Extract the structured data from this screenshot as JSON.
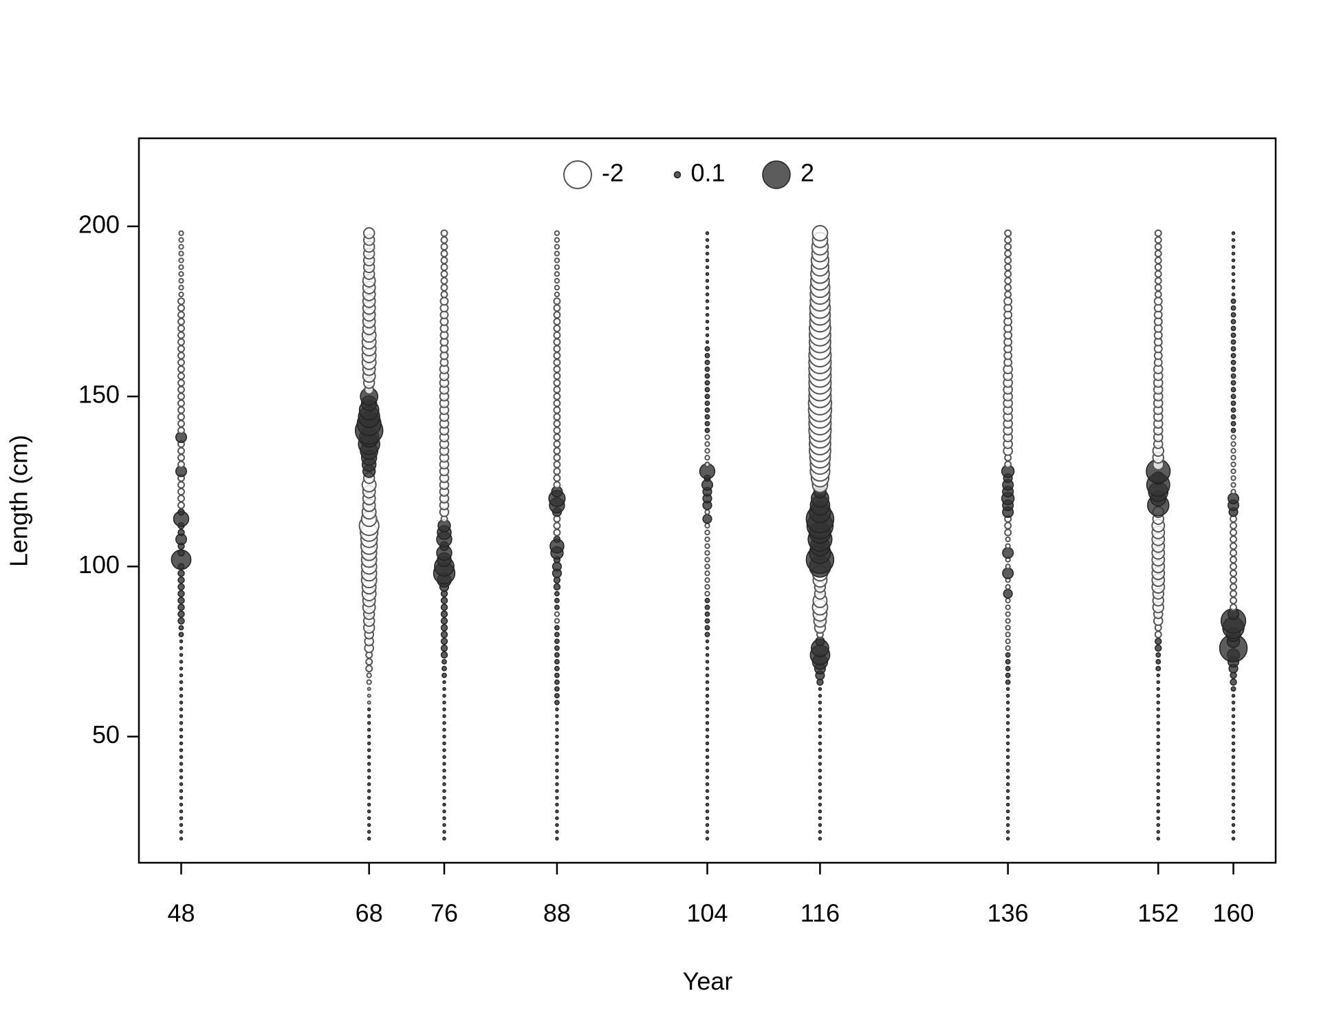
{
  "chart_data": {
    "type": "bubble",
    "xlabel": "Year",
    "ylabel": "Length (cm)",
    "positive_color": "#333333",
    "negative_color": "#ffffff",
    "xlim": [
      43.5,
      164.5
    ],
    "ylim": [
      12.9,
      225.9
    ],
    "xticks": [
      48,
      68,
      76,
      88,
      104,
      116,
      136,
      152,
      160
    ],
    "yticks": [
      50,
      100,
      150,
      200
    ],
    "legend": {
      "values": [
        -2,
        0.1,
        2
      ]
    },
    "lengths": [
      20,
      22,
      24,
      26,
      28,
      30,
      32,
      34,
      36,
      38,
      40,
      42,
      44,
      46,
      48,
      50,
      52,
      54,
      56,
      58,
      60,
      62,
      64,
      66,
      68,
      70,
      72,
      74,
      76,
      78,
      80,
      82,
      84,
      86,
      88,
      90,
      92,
      94,
      96,
      98,
      100,
      102,
      104,
      106,
      108,
      110,
      112,
      114,
      116,
      118,
      120,
      122,
      124,
      126,
      128,
      130,
      132,
      134,
      136,
      138,
      140,
      142,
      144,
      146,
      148,
      150,
      152,
      154,
      156,
      158,
      160,
      162,
      164,
      166,
      168,
      170,
      172,
      174,
      176,
      178,
      180,
      182,
      184,
      186,
      188,
      190,
      192,
      194,
      196,
      198
    ],
    "columns": [
      {
        "x": 48,
        "residuals": [
          0.02,
          0.02,
          0.02,
          0.02,
          0.02,
          0.02,
          0.02,
          0.02,
          0.02,
          0.02,
          0.02,
          0.02,
          0.02,
          0.02,
          0.02,
          0.02,
          0.02,
          0.02,
          0.02,
          0.02,
          0.02,
          0.02,
          0.02,
          0.02,
          0.02,
          0.02,
          0.02,
          0.02,
          0.02,
          0.02,
          0.05,
          0.05,
          0.1,
          0.1,
          0.1,
          0.1,
          0.1,
          0.1,
          0.1,
          0.1,
          0.1,
          1.0,
          0.1,
          0.1,
          0.3,
          0.1,
          0.1,
          0.6,
          0.1,
          -0.1,
          -0.1,
          -0.1,
          -0.1,
          -0.1,
          0.3,
          -0.1,
          -0.1,
          -0.1,
          -0.1,
          0.3,
          -0.1,
          -0.1,
          -0.1,
          -0.1,
          -0.1,
          -0.1,
          -0.1,
          -0.1,
          -0.1,
          -0.1,
          -0.1,
          -0.1,
          -0.1,
          -0.1,
          -0.1,
          -0.1,
          -0.1,
          -0.1,
          -0.1,
          -0.1,
          -0.05,
          -0.05,
          -0.05,
          -0.05,
          -0.05,
          -0.05,
          -0.05,
          -0.05,
          -0.05,
          -0.05
        ]
      },
      {
        "x": 68,
        "residuals": [
          0.02,
          0.02,
          0.02,
          0.02,
          0.02,
          0.02,
          0.02,
          0.02,
          0.02,
          0.02,
          0.02,
          0.02,
          0.02,
          0.02,
          0.02,
          0.02,
          0.02,
          0.02,
          0.02,
          0.02,
          -0.02,
          -0.02,
          -0.02,
          -0.05,
          -0.05,
          -0.1,
          -0.1,
          -0.1,
          -0.2,
          -0.2,
          -0.2,
          -0.3,
          -0.3,
          -0.3,
          -0.4,
          -0.4,
          -0.5,
          -0.5,
          -0.6,
          -0.6,
          -0.6,
          -0.6,
          -0.6,
          -0.7,
          -0.7,
          -0.8,
          -1.0,
          -0.6,
          -0.5,
          -0.4,
          -0.4,
          -0.4,
          -0.5,
          -0.3,
          0.4,
          0.5,
          0.6,
          0.8,
          1.2,
          1.0,
          2.0,
          1.5,
          1.2,
          1.0,
          0.6,
          0.8,
          -0.2,
          -0.3,
          -0.4,
          -0.4,
          -0.5,
          -0.5,
          -0.5,
          -0.5,
          -0.5,
          -0.4,
          -0.4,
          -0.4,
          -0.4,
          -0.4,
          -0.4,
          -0.4,
          -0.4,
          -0.3,
          -0.3,
          -0.3,
          -0.3,
          -0.3,
          -0.3,
          -0.3
        ]
      },
      {
        "x": 76,
        "residuals": [
          0.02,
          0.02,
          0.02,
          0.02,
          0.02,
          0.02,
          0.02,
          0.02,
          0.02,
          0.02,
          0.02,
          0.02,
          0.02,
          0.02,
          0.02,
          0.02,
          0.02,
          0.02,
          0.02,
          0.02,
          0.02,
          0.02,
          0.02,
          0.02,
          0.05,
          0.05,
          0.05,
          0.1,
          0.1,
          0.1,
          0.1,
          0.1,
          0.1,
          0.1,
          0.1,
          0.1,
          0.1,
          0.2,
          0.5,
          1.2,
          1.0,
          0.5,
          0.6,
          0.2,
          0.6,
          0.5,
          0.4,
          -0.1,
          -0.2,
          -0.2,
          -0.2,
          -0.2,
          -0.2,
          -0.2,
          -0.2,
          -0.2,
          -0.2,
          -0.2,
          -0.2,
          -0.2,
          -0.2,
          -0.2,
          -0.2,
          -0.2,
          -0.2,
          -0.2,
          -0.2,
          -0.2,
          -0.2,
          -0.2,
          -0.15,
          -0.15,
          -0.15,
          -0.15,
          -0.15,
          -0.15,
          -0.15,
          -0.15,
          -0.15,
          -0.15,
          -0.1,
          -0.1,
          -0.1,
          -0.1,
          -0.1,
          -0.1,
          -0.1,
          -0.1,
          -0.1,
          -0.1
        ]
      },
      {
        "x": 88,
        "residuals": [
          0.02,
          0.02,
          0.02,
          0.02,
          0.02,
          0.02,
          0.02,
          0.02,
          0.02,
          0.02,
          0.02,
          0.02,
          0.02,
          0.02,
          0.02,
          0.02,
          0.02,
          0.02,
          0.02,
          0.02,
          0.05,
          0.05,
          0.05,
          0.05,
          0.05,
          0.05,
          0.05,
          0.05,
          0.05,
          0.05,
          0.05,
          0.05,
          -0.05,
          -0.05,
          0.05,
          0.05,
          0.05,
          0.1,
          0.1,
          0.2,
          0.2,
          0.1,
          0.4,
          0.5,
          0.1,
          -0.1,
          -0.1,
          -0.1,
          0.2,
          0.6,
          0.7,
          0.3,
          -0.1,
          -0.1,
          -0.1,
          -0.1,
          -0.1,
          -0.1,
          -0.1,
          -0.1,
          -0.1,
          -0.1,
          -0.1,
          -0.1,
          -0.1,
          -0.1,
          -0.1,
          -0.1,
          -0.1,
          -0.1,
          -0.1,
          -0.1,
          -0.1,
          -0.1,
          -0.1,
          -0.1,
          -0.1,
          -0.1,
          -0.1,
          -0.1,
          -0.05,
          -0.05,
          -0.05,
          -0.05,
          -0.05,
          -0.05,
          -0.05,
          -0.05,
          -0.05,
          -0.05
        ]
      },
      {
        "x": 104,
        "residuals": [
          0.02,
          0.02,
          0.02,
          0.02,
          0.02,
          0.02,
          0.02,
          0.02,
          0.02,
          0.02,
          0.02,
          0.02,
          0.02,
          0.02,
          0.02,
          0.02,
          0.02,
          0.02,
          0.02,
          0.02,
          0.02,
          0.02,
          0.02,
          0.02,
          0.02,
          0.02,
          0.02,
          0.02,
          0.02,
          0.02,
          0.05,
          0.05,
          0.05,
          0.05,
          0.05,
          0.05,
          -0.05,
          -0.05,
          -0.05,
          -0.05,
          -0.05,
          -0.05,
          -0.05,
          -0.05,
          -0.05,
          -0.05,
          -0.05,
          0.2,
          -0.05,
          0.2,
          0.2,
          0.2,
          0.3,
          0.1,
          0.6,
          -0.05,
          -0.05,
          -0.05,
          -0.05,
          -0.05,
          0.05,
          0.05,
          0.05,
          0.05,
          0.05,
          0.05,
          0.05,
          0.05,
          0.05,
          0.05,
          0.05,
          0.05,
          0.05,
          0.02,
          0.02,
          0.02,
          0.02,
          0.02,
          0.02,
          0.02,
          0.02,
          0.02,
          0.02,
          0.02,
          0.02,
          0.02,
          0.02,
          0.02,
          0.02,
          0.02
        ]
      },
      {
        "x": 116,
        "residuals": [
          0.02,
          0.02,
          0.02,
          0.02,
          0.02,
          0.02,
          0.02,
          0.02,
          0.02,
          0.02,
          0.02,
          0.02,
          0.02,
          0.02,
          0.02,
          0.02,
          0.02,
          0.02,
          0.02,
          0.02,
          0.02,
          0.02,
          0.02,
          0.1,
          0.2,
          0.3,
          0.6,
          1.0,
          0.8,
          0.2,
          -0.1,
          -0.3,
          -0.4,
          -0.5,
          -0.6,
          -0.5,
          -0.3,
          -0.3,
          -0.5,
          -0.6,
          1.2,
          2.0,
          1.2,
          1.0,
          1.5,
          1.2,
          1.8,
          2.0,
          1.2,
          1.0,
          0.8,
          0.4,
          -0.6,
          -0.8,
          -1.0,
          -1.0,
          -1.1,
          -1.2,
          -1.2,
          -1.2,
          -1.3,
          -1.3,
          -1.3,
          -1.4,
          -1.4,
          -1.3,
          -1.3,
          -1.3,
          -1.3,
          -1.3,
          -1.3,
          -1.3,
          -1.2,
          -1.2,
          -1.2,
          -1.2,
          -1.1,
          -1.1,
          -1.1,
          -1.0,
          -1.0,
          -1.0,
          -0.9,
          -0.9,
          -0.8,
          -0.8,
          -0.7,
          -0.7,
          -0.6,
          -0.6
        ]
      },
      {
        "x": 136,
        "residuals": [
          0.02,
          0.02,
          0.02,
          0.02,
          0.02,
          0.02,
          0.02,
          0.02,
          0.02,
          0.02,
          0.02,
          0.02,
          0.02,
          0.02,
          0.02,
          0.02,
          0.02,
          0.02,
          0.02,
          0.02,
          0.02,
          0.02,
          0.02,
          0.05,
          0.05,
          0.05,
          0.05,
          0.05,
          -0.05,
          -0.05,
          -0.05,
          -0.05,
          -0.05,
          -0.05,
          -0.05,
          -0.05,
          0.2,
          -0.05,
          -0.05,
          0.3,
          -0.05,
          -0.05,
          0.3,
          -0.05,
          -0.05,
          -0.1,
          -0.1,
          -0.1,
          0.3,
          0.3,
          0.4,
          0.3,
          0.3,
          0.2,
          0.4,
          -0.1,
          -0.1,
          -0.2,
          -0.2,
          -0.2,
          -0.2,
          -0.2,
          -0.2,
          -0.2,
          -0.2,
          -0.2,
          -0.2,
          -0.2,
          -0.2,
          -0.2,
          -0.15,
          -0.15,
          -0.15,
          -0.15,
          -0.15,
          -0.15,
          -0.15,
          -0.15,
          -0.15,
          -0.15,
          -0.1,
          -0.1,
          -0.1,
          -0.1,
          -0.1,
          -0.1,
          -0.1,
          -0.1,
          -0.1,
          -0.1
        ]
      },
      {
        "x": 152,
        "residuals": [
          0.02,
          0.02,
          0.02,
          0.02,
          0.02,
          0.02,
          0.02,
          0.02,
          0.02,
          0.02,
          0.02,
          0.02,
          0.02,
          0.02,
          0.02,
          0.02,
          0.02,
          0.02,
          0.02,
          0.02,
          0.02,
          0.02,
          0.02,
          0.02,
          0.02,
          0.05,
          0.05,
          0.05,
          0.1,
          0.1,
          -0.1,
          -0.1,
          -0.2,
          -0.2,
          -0.3,
          -0.3,
          -0.3,
          -0.4,
          -0.4,
          -0.4,
          -0.4,
          -0.4,
          -0.4,
          -0.4,
          -0.4,
          -0.4,
          -0.4,
          -0.3,
          -0.3,
          1.2,
          0.6,
          1.0,
          1.4,
          0.4,
          1.5,
          -0.3,
          -0.3,
          -0.3,
          -0.2,
          -0.2,
          -0.2,
          -0.2,
          -0.2,
          -0.2,
          -0.2,
          -0.2,
          -0.2,
          -0.2,
          -0.2,
          -0.2,
          -0.15,
          -0.15,
          -0.15,
          -0.15,
          -0.15,
          -0.15,
          -0.15,
          -0.15,
          -0.15,
          -0.15,
          -0.1,
          -0.1,
          -0.1,
          -0.1,
          -0.1,
          -0.1,
          -0.1,
          -0.1,
          -0.1,
          -0.1
        ]
      },
      {
        "x": 160,
        "residuals": [
          0.02,
          0.02,
          0.02,
          0.02,
          0.02,
          0.02,
          0.02,
          0.02,
          0.02,
          0.02,
          0.02,
          0.02,
          0.02,
          0.02,
          0.02,
          0.02,
          0.02,
          0.02,
          0.02,
          0.02,
          0.02,
          0.02,
          0.05,
          0.1,
          0.1,
          0.2,
          0.3,
          0.4,
          2.0,
          0.4,
          0.5,
          1.2,
          1.6,
          0.3,
          -0.1,
          -0.1,
          -0.1,
          -0.1,
          -0.1,
          -0.1,
          -0.1,
          -0.1,
          -0.1,
          -0.1,
          -0.1,
          -0.1,
          -0.1,
          -0.1,
          0.2,
          0.3,
          0.3,
          -0.05,
          -0.05,
          -0.05,
          -0.05,
          -0.05,
          -0.05,
          -0.05,
          -0.05,
          -0.05,
          0.05,
          0.05,
          0.05,
          0.05,
          0.05,
          0.05,
          0.05,
          0.05,
          0.05,
          0.05,
          0.05,
          0.05,
          0.05,
          0.05,
          0.05,
          0.05,
          0.05,
          0.05,
          0.05,
          0.05,
          0.02,
          0.02,
          0.02,
          0.02,
          0.02,
          0.02,
          0.02,
          0.02,
          0.02,
          0.02
        ]
      }
    ]
  }
}
